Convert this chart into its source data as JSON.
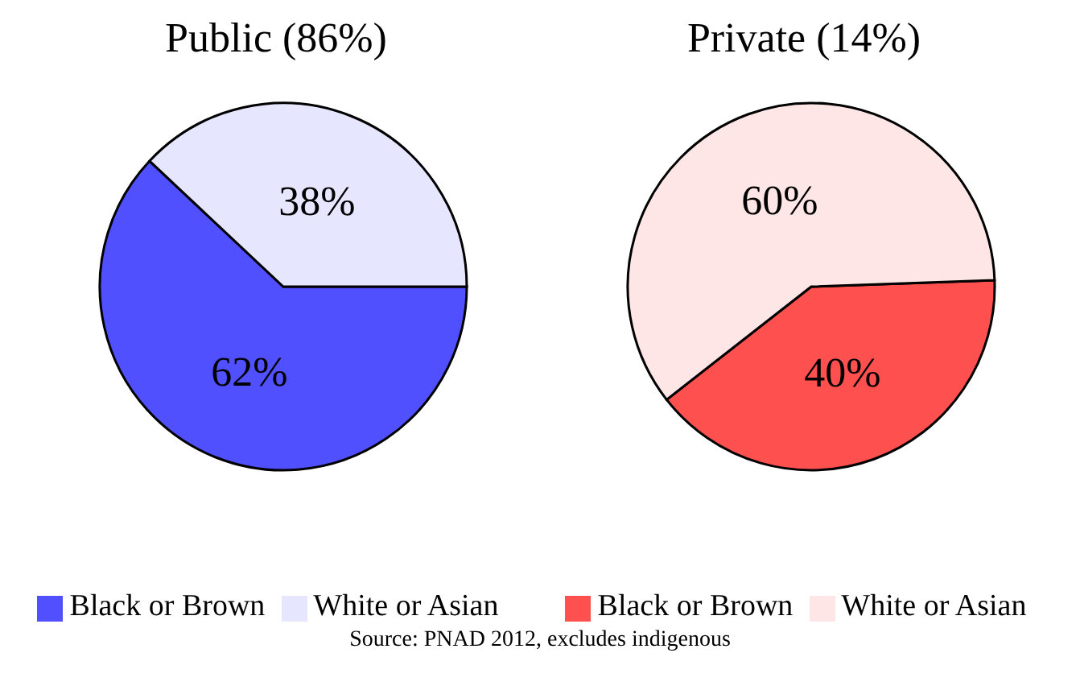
{
  "chart_data": [
    {
      "type": "pie",
      "title": "Public (86%)",
      "categories": [
        "Black or Brown",
        "White or Asian"
      ],
      "values": [
        62,
        38
      ],
      "colors": [
        "#5050ff",
        "#e6e6ff"
      ],
      "value_labels": [
        "62%",
        "38%"
      ],
      "legend": "bottom"
    },
    {
      "type": "pie",
      "title": "Private (14%)",
      "categories": [
        "Black or Brown",
        "White or Asian"
      ],
      "values": [
        40,
        60
      ],
      "colors": [
        "#ff5050",
        "#ffe6e6"
      ],
      "value_labels": [
        "40%",
        "60%"
      ],
      "legend": "bottom",
      "annotations": [
        "Source: PNAD 2012, excludes indigenous"
      ]
    }
  ]
}
